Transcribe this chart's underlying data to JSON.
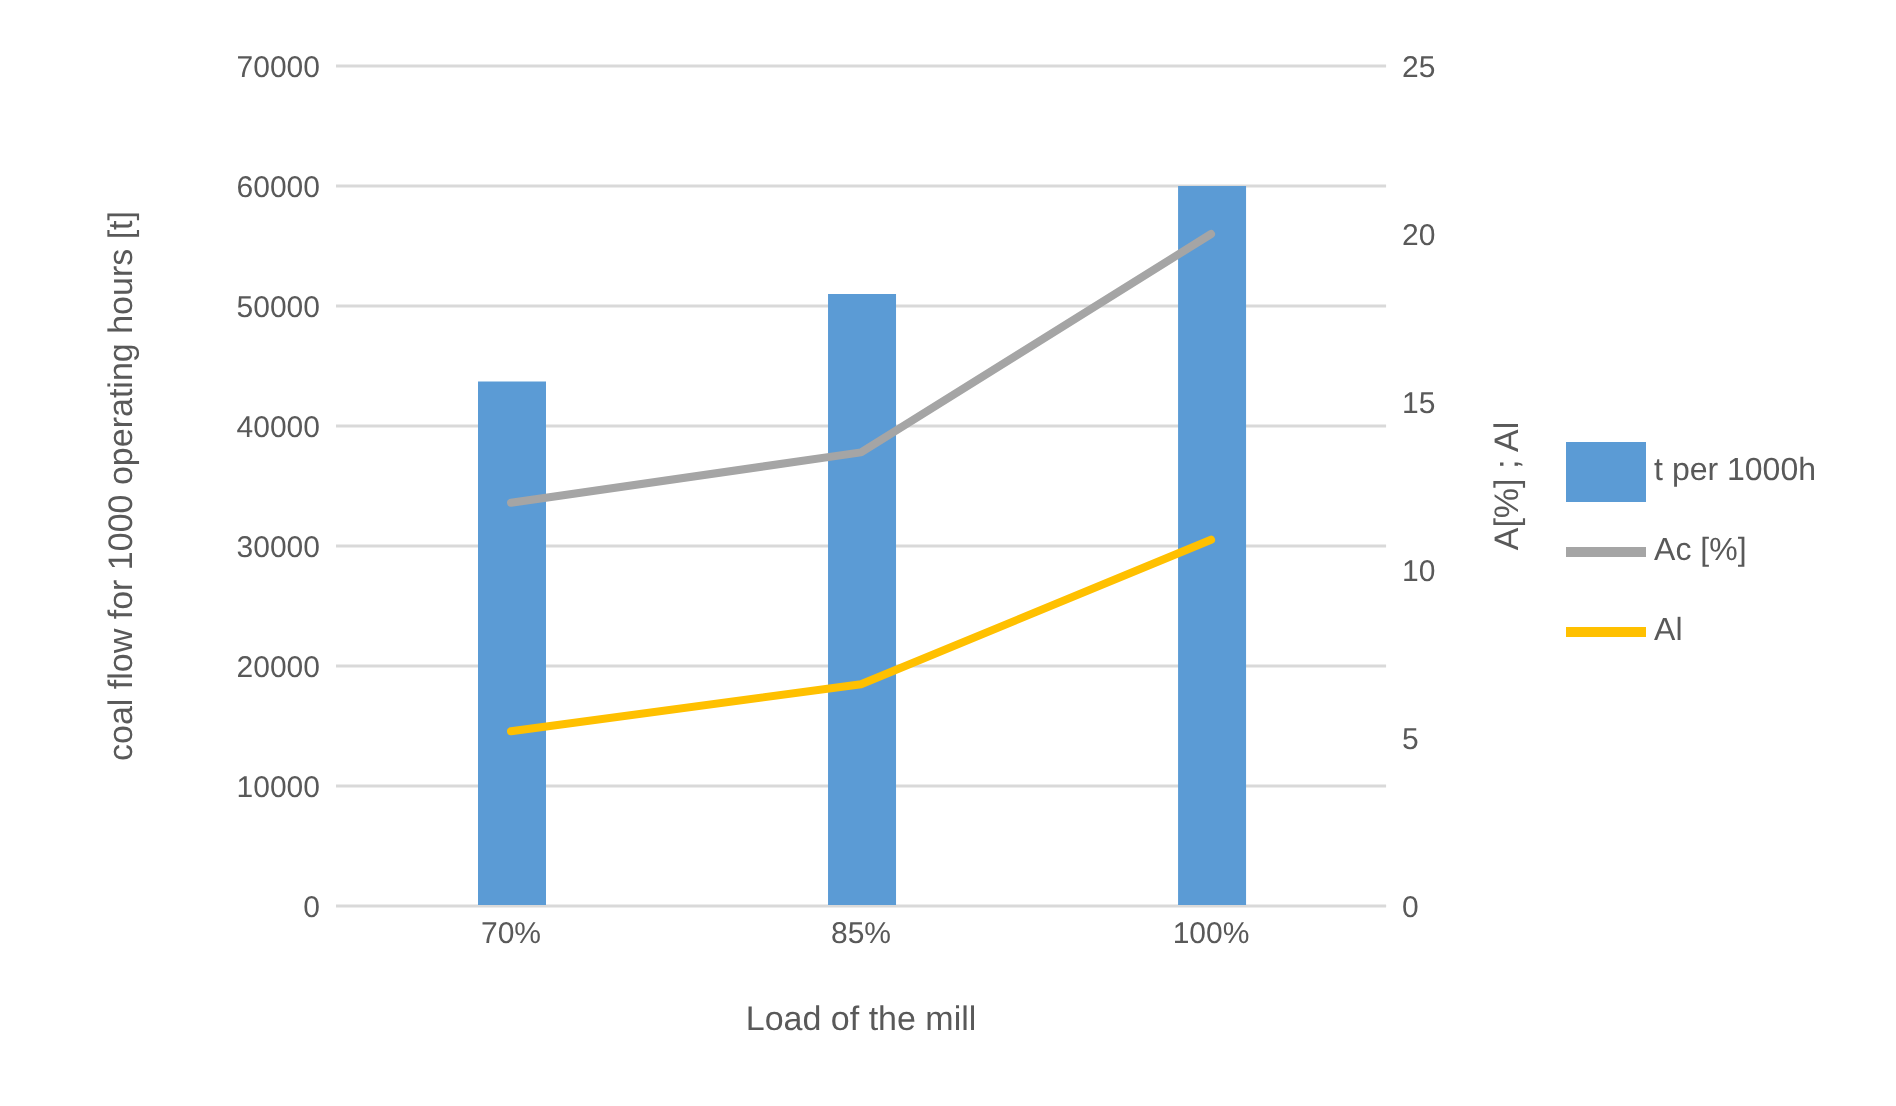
{
  "chart_data": {
    "type": "bar",
    "xlabel": "Load of the mill",
    "ylabel": "coal flow for 1000 operating hours [t]",
    "y2label": "A[%] ; Al",
    "categories": [
      "70%",
      "85%",
      "100%"
    ],
    "series": [
      {
        "name": "t per 1000h",
        "color": "#5b9bd5",
        "values": [
          43700,
          51000,
          60000
        ]
      },
      {
        "name": "Ac [%]",
        "type": "line",
        "axis": "y2",
        "color": "#a5a5a5",
        "values": [
          12.0,
          13.5,
          20.0
        ]
      },
      {
        "name": "Al",
        "type": "line",
        "axis": "y2",
        "color": "#ffc000",
        "values": [
          5.2,
          6.6,
          10.9
        ]
      }
    ],
    "ylim": [
      0,
      70000
    ],
    "yticks": [
      0,
      10000,
      20000,
      30000,
      40000,
      50000,
      60000,
      70000
    ],
    "y2lim": [
      0,
      25
    ],
    "y2ticks": [
      0,
      5,
      10,
      15,
      20,
      25
    ],
    "grid": "y",
    "legend": "right",
    "marker": "none",
    "line_style": "solid"
  }
}
